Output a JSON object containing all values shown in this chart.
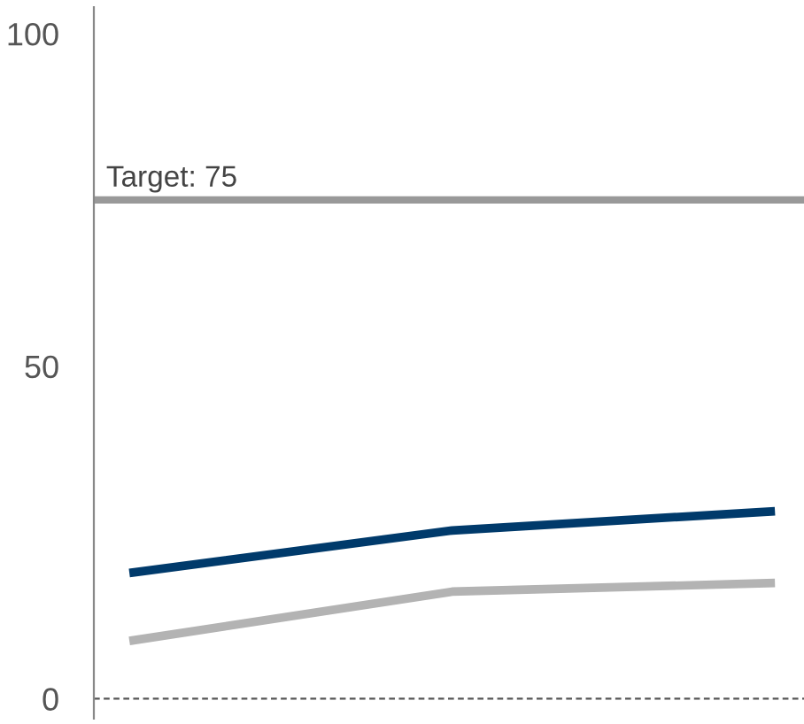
{
  "chart_data": {
    "type": "line",
    "categories": [
      null,
      null,
      null
    ],
    "series": [
      {
        "color": "#003a6b",
        "values": [
          18.9,
          25.3,
          28.2
        ]
      },
      {
        "color": "#b3b3b3",
        "values": [
          8.7,
          16.1,
          17.4
        ]
      }
    ],
    "ylim": [
      -3,
      104
    ],
    "yticks": [
      0,
      50,
      100
    ],
    "ref_lines": [
      {
        "axis": "y",
        "value": 75,
        "label": "Target: 75",
        "color": "#999999",
        "line_style": "solid"
      },
      {
        "axis": "y",
        "value": 0,
        "color": "#555555",
        "line_style": "dashed"
      }
    ],
    "grid": false,
    "legend": false,
    "tick_labels": "y",
    "marker": "none",
    "line_style": "solid"
  }
}
